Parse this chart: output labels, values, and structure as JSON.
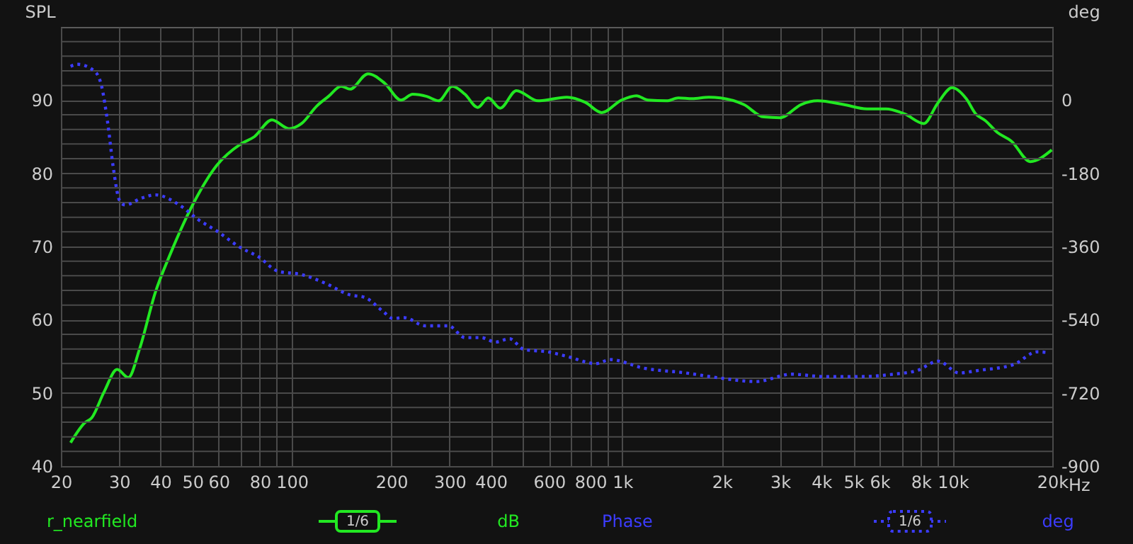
{
  "chart_data": {
    "type": "line",
    "ylabel": "SPL",
    "y2label": "deg",
    "xlim": [
      20,
      20000
    ],
    "ylim": [
      40,
      100
    ],
    "y2lim": [
      -900,
      180
    ],
    "log": "x",
    "grid": true,
    "legend": "bottom",
    "marker": "none",
    "xticks": [
      20,
      30,
      40,
      50,
      60,
      {
        "value": 70,
        "label": null
      },
      80,
      {
        "value": 90,
        "label": null
      },
      100,
      200,
      300,
      400,
      {
        "value": 500,
        "label": null
      },
      600,
      {
        "value": 700,
        "label": null
      },
      800,
      {
        "value": 900,
        "label": null
      },
      {
        "value": 1000,
        "label": "1k"
      },
      {
        "value": 2000,
        "label": "2k"
      },
      {
        "value": 3000,
        "label": "3k"
      },
      {
        "value": 4000,
        "label": "4k"
      },
      {
        "value": 5000,
        "label": "5k"
      },
      {
        "value": 6000,
        "label": "6k"
      },
      {
        "value": 7000,
        "label": null
      },
      {
        "value": 8000,
        "label": "8k"
      },
      {
        "value": 9000,
        "label": null
      },
      {
        "value": 10000,
        "label": "10k"
      },
      {
        "value": 20000,
        "label": "20k"
      }
    ],
    "xlabel": "Hz",
    "yticks": [
      40,
      {
        "value": 42,
        "label": null
      },
      {
        "value": 44,
        "label": null
      },
      {
        "value": 46,
        "label": null
      },
      {
        "value": 48,
        "label": null
      },
      50,
      {
        "value": 52,
        "label": null
      },
      {
        "value": 54,
        "label": null
      },
      {
        "value": 56,
        "label": null
      },
      {
        "value": 58,
        "label": null
      },
      60,
      {
        "value": 62,
        "label": null
      },
      {
        "value": 64,
        "label": null
      },
      {
        "value": 66,
        "label": null
      },
      {
        "value": 68,
        "label": null
      },
      70,
      {
        "value": 72,
        "label": null
      },
      {
        "value": 74,
        "label": null
      },
      {
        "value": 76,
        "label": null
      },
      {
        "value": 78,
        "label": null
      },
      80,
      {
        "value": 82,
        "label": null
      },
      {
        "value": 84,
        "label": null
      },
      {
        "value": 86,
        "label": null
      },
      {
        "value": 88,
        "label": null
      },
      90,
      {
        "value": 92,
        "label": null
      },
      {
        "value": 94,
        "label": null
      },
      {
        "value": 96,
        "label": null
      },
      {
        "value": 98,
        "label": null
      }
    ],
    "y2ticks": [
      -900,
      -720,
      -540,
      -360,
      -180,
      0
    ],
    "annotations": [
      "1/6",
      "dB",
      "1/6",
      "deg"
    ],
    "series": [
      {
        "name": "r_nearfield",
        "color": "#22e822",
        "line_style": "solid",
        "x": [
          21.4,
          23.6,
          24.8,
          27.0,
          29.6,
          32.0,
          34.6,
          38.6,
          42.8,
          50.5,
          59.3,
          70.0,
          77.0,
          87.0,
          98.0,
          107,
          119,
          129,
          141,
          150,
          170,
          191,
          214,
          232,
          256,
          278,
          306,
          334,
          365,
          393,
          427,
          478,
          556,
          679,
          772,
          866,
          994,
          1103,
          1196,
          1361,
          1477,
          1629,
          1826,
          1981,
          2330,
          2677,
          3003,
          3478,
          3898,
          4668,
          5500,
          6280,
          7160,
          8170,
          9010,
          9950,
          10980,
          11740,
          12540,
          13620,
          15040,
          17160,
          19930
        ],
        "values": [
          43.2,
          45.9,
          46.6,
          50.1,
          53.2,
          52.1,
          56.0,
          63.7,
          68.9,
          76.0,
          81.1,
          84.0,
          85.0,
          87.3,
          86.1,
          86.8,
          89.2,
          90.5,
          91.9,
          91.5,
          93.6,
          92.3,
          90.0,
          90.8,
          90.5,
          89.9,
          91.9,
          90.8,
          89.0,
          90.3,
          88.9,
          91.3,
          89.9,
          90.4,
          89.7,
          88.3,
          90.0,
          90.6,
          90.0,
          89.9,
          90.3,
          90.2,
          90.4,
          90.3,
          89.4,
          87.7,
          87.6,
          89.4,
          89.9,
          89.4,
          88.8,
          88.8,
          88.1,
          86.8,
          89.6,
          91.7,
          90.2,
          88.1,
          87.2,
          85.6,
          84.4,
          81.6,
          83.2
        ]
      },
      {
        "name": "Phase",
        "color": "#3c3cff",
        "line_style": "dotted",
        "axis": "y2",
        "x": [
          21.4,
          22.5,
          25.3,
          26.6,
          27.7,
          28.8,
          30.1,
          31.3,
          35.1,
          38.6,
          45.7,
          51.9,
          59.3,
          70.0,
          79.5,
          90.8,
          107,
          126,
          150,
          166,
          189,
          202,
          219,
          253,
          298,
          334,
          374,
          413,
          456,
          503,
          593,
          679,
          832,
          919,
          1158,
          1559,
          1954,
          2541,
          3256,
          4098,
          5154,
          6627,
          7800,
          9040,
          10450,
          11900,
          15300,
          18000,
          19560
        ],
        "values": [
          83,
          88,
          71,
          32,
          -55,
          -165,
          -247,
          -258,
          -241,
          -233,
          -258,
          -293,
          -322,
          -363,
          -386,
          -421,
          -429,
          -450,
          -479,
          -485,
          -520,
          -537,
          -535,
          -555,
          -555,
          -584,
          -584,
          -595,
          -587,
          -613,
          -619,
          -630,
          -648,
          -638,
          -659,
          -671,
          -683,
          -692,
          -674,
          -680,
          -680,
          -674,
          -665,
          -642,
          -671,
          -665,
          -650,
          -619,
          -621
        ]
      }
    ]
  }
}
